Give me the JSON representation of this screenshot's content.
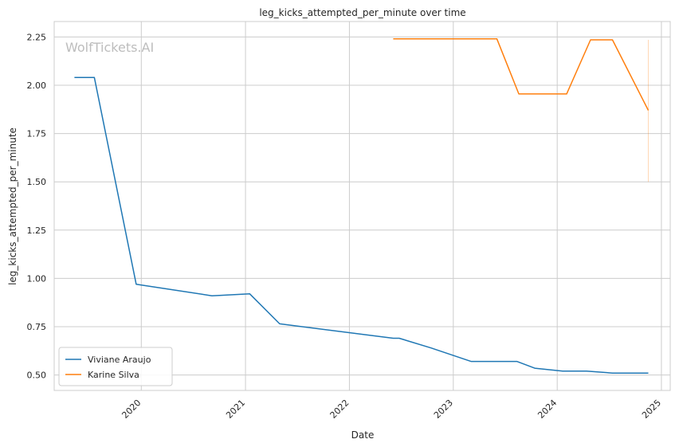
{
  "chart_data": {
    "type": "line",
    "title": "leg_kicks_attempted_per_minute over time",
    "xlabel": "Date",
    "ylabel": "leg_kicks_attempted_per_minute",
    "watermark": "WolfTickets.AI",
    "x_ticks": [
      "2020",
      "2021",
      "2022",
      "2023",
      "2024",
      "2025"
    ],
    "y_ticks": [
      "0.50",
      "0.75",
      "1.00",
      "1.25",
      "1.50",
      "1.75",
      "2.00",
      "2.25"
    ],
    "xlim": [
      "2019-03-01",
      "2025-02-01"
    ],
    "ylim": [
      0.42,
      2.33
    ],
    "grid": true,
    "legend_position": "lower-left",
    "series": [
      {
        "name": "Viviane Araujo",
        "color": "#1f77b4",
        "points": [
          [
            "2019-05-11",
            2.04
          ],
          [
            "2019-07-20",
            2.04
          ],
          [
            "2019-12-14",
            0.97
          ],
          [
            "2020-09-05",
            0.91
          ],
          [
            "2021-01-16",
            0.92
          ],
          [
            "2021-05-01",
            0.765
          ],
          [
            "2022-06-04",
            0.69
          ],
          [
            "2022-06-25",
            0.69
          ],
          [
            "2022-10-15",
            0.64
          ],
          [
            "2023-03-04",
            0.57
          ],
          [
            "2023-08-12",
            0.57
          ],
          [
            "2023-10-14",
            0.535
          ],
          [
            "2024-01-20",
            0.52
          ],
          [
            "2024-04-13",
            0.52
          ],
          [
            "2024-07-13",
            0.51
          ],
          [
            "2024-11-16",
            0.51
          ]
        ]
      },
      {
        "name": "Karine Silva",
        "color": "#ff7f0e",
        "points": [
          [
            "2022-06-04",
            2.24
          ],
          [
            "2023-06-03",
            2.24
          ],
          [
            "2023-08-19",
            1.955
          ],
          [
            "2024-02-03",
            1.955
          ],
          [
            "2024-04-27",
            2.235
          ],
          [
            "2024-07-13",
            2.235
          ],
          [
            "2024-11-16",
            1.87
          ]
        ],
        "band": {
          "x": "2024-11-16",
          "low": 1.5,
          "high": 2.235
        }
      }
    ]
  }
}
